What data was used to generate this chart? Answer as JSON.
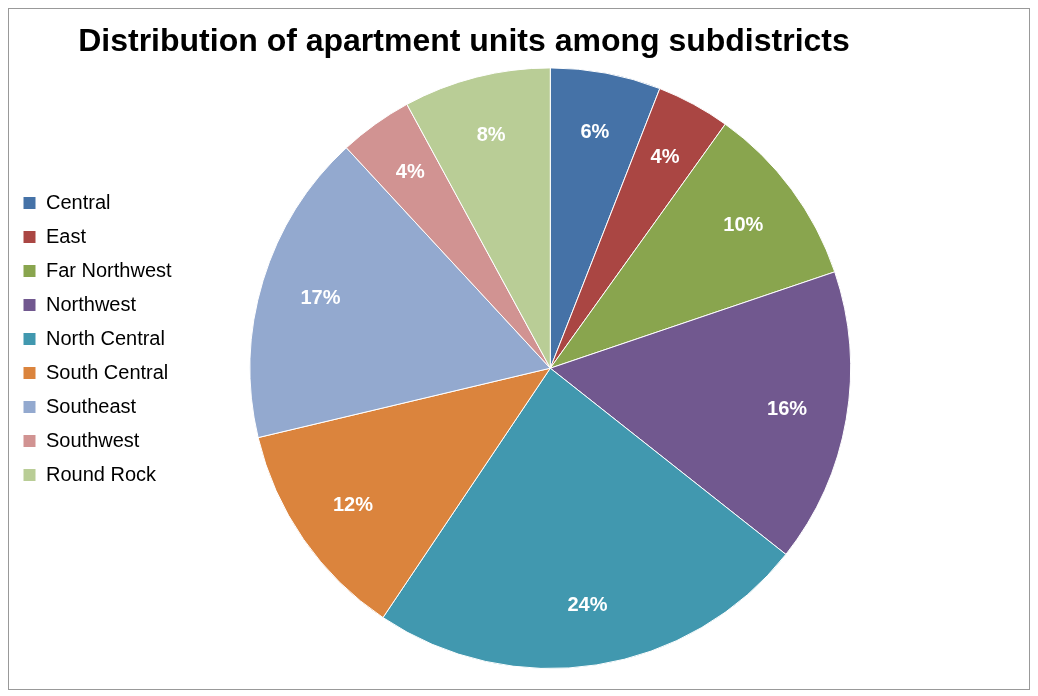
{
  "chart_data": {
    "type": "pie",
    "title": "Distribution of apartment units among subdistricts",
    "categories": [
      "Central",
      "East",
      "Far Northwest",
      "Northwest",
      "North Central",
      "South Central",
      "Southeast",
      "Southwest",
      "Round Rock"
    ],
    "values": [
      6,
      4,
      10,
      16,
      24,
      12,
      17,
      4,
      8
    ],
    "value_labels": [
      "6%",
      "4%",
      "10%",
      "16%",
      "24%",
      "12%",
      "17%",
      "4%",
      "8%"
    ],
    "colors": [
      "#4572a7",
      "#aa4643",
      "#89a54e",
      "#71588f",
      "#4198af",
      "#db843d",
      "#93a9cf",
      "#d19392",
      "#b9cd96"
    ],
    "legend": "left"
  }
}
